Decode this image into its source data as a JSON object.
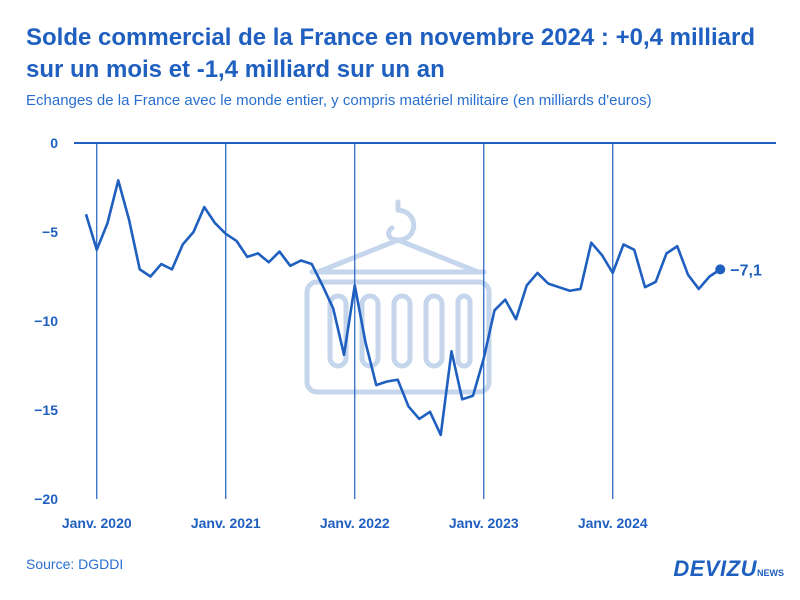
{
  "header": {
    "title": "Solde commercial de la France en novembre 2024 : +0,4 milliard sur un mois et -1,4 milliard sur un an",
    "subtitle": "Echanges de la France avec le monde entier, y compris matériel militaire (en milliards d'euros)"
  },
  "footer": {
    "source": "Source: DGDDI",
    "brand": "DEVIZU",
    "brand_suffix": "NEWS"
  },
  "colors": {
    "line": "#1f5fbf",
    "axis": "#1f5fbf",
    "icon": "#c5d6ec",
    "text": "#2a6fd0"
  },
  "chart_data": {
    "type": "line",
    "title": "Solde commercial de la France",
    "xlabel": "",
    "ylabel": "milliards d'euros",
    "ylim": [
      -20,
      0
    ],
    "yticks": [
      0,
      -5,
      -10,
      -15,
      -20
    ],
    "ytick_labels": [
      "0",
      "−5",
      "−10",
      "−15",
      "−20"
    ],
    "xticks": [
      {
        "index": 1,
        "label": "Janv. 2020"
      },
      {
        "index": 13,
        "label": "Janv. 2021"
      },
      {
        "index": 25,
        "label": "Janv. 2022"
      },
      {
        "index": 37,
        "label": "Janv. 2023"
      },
      {
        "index": 49,
        "label": "Janv. 2024"
      }
    ],
    "start": "Déc. 2019",
    "end": "Nov. 2024",
    "series": [
      {
        "name": "Solde commercial",
        "values": [
          -4.0,
          -6.0,
          -4.5,
          -2.1,
          -4.3,
          -7.1,
          -7.5,
          -6.8,
          -7.1,
          -5.7,
          -5.0,
          -3.6,
          -4.5,
          -5.1,
          -5.5,
          -6.4,
          -6.2,
          -6.7,
          -6.1,
          -6.9,
          -6.6,
          -6.8,
          -8.0,
          -9.3,
          -11.9,
          -8.0,
          -11.2,
          -13.6,
          -13.4,
          -13.3,
          -14.8,
          -15.5,
          -15.1,
          -16.4,
          -11.7,
          -14.4,
          -14.2,
          -12.1,
          -9.4,
          -8.8,
          -9.9,
          -8.0,
          -7.3,
          -7.9,
          -8.1,
          -8.3,
          -8.2,
          -5.6,
          -6.3,
          -7.3,
          -5.7,
          -6.0,
          -8.1,
          -7.8,
          -6.2,
          -5.8,
          -7.4,
          -8.2,
          -7.5,
          -7.1
        ]
      }
    ],
    "last_value_label": "−7,1"
  }
}
